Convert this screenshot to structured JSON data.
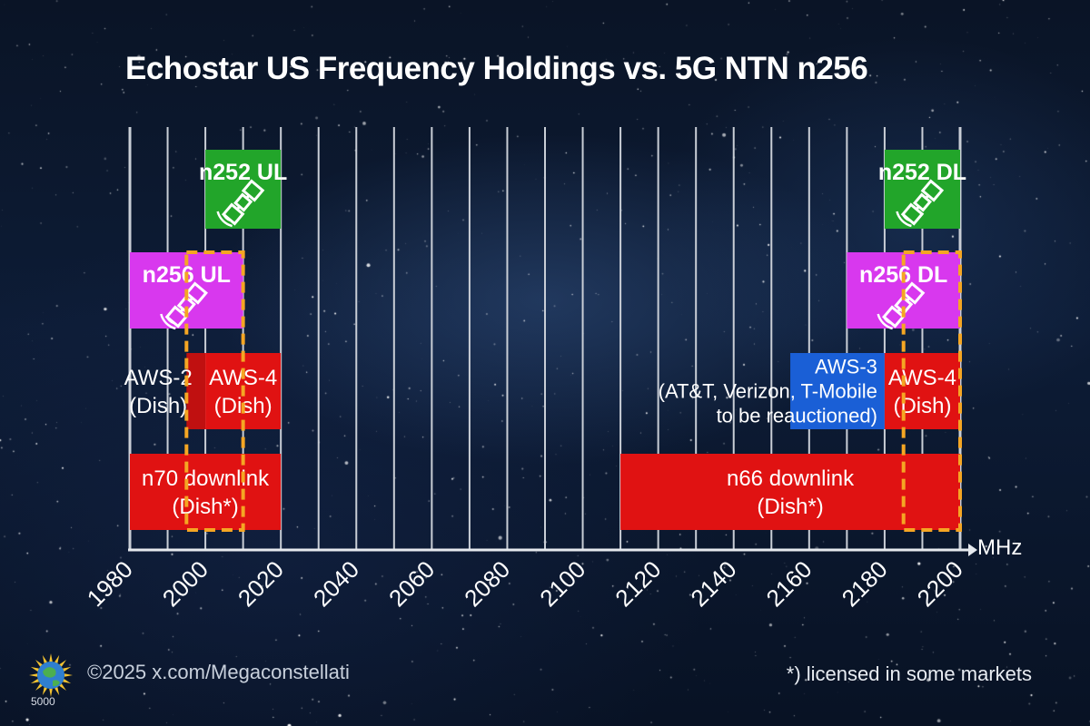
{
  "chart_data": {
    "type": "bar",
    "title": "Echostar US Frequency Holdings vs. 5G NTN n256",
    "xlabel": "MHz",
    "xlim": [
      1980,
      2200
    ],
    "grid_step": 10,
    "ticks": [
      "1980",
      "2000",
      "2020",
      "2040",
      "2060",
      "2080",
      "2100",
      "2120",
      "2140",
      "2160",
      "2180",
      "2200"
    ],
    "tick_values": [
      1980,
      2000,
      2020,
      2040,
      2060,
      2080,
      2100,
      2120,
      2140,
      2160,
      2180,
      2200
    ],
    "rows": [
      "n252",
      "n256",
      "aws",
      "n66-n70"
    ],
    "blocks": [
      {
        "id": "n252-ul",
        "row": 0,
        "start": 2000,
        "end": 2020,
        "lines": [
          "n252 UL"
        ],
        "color": "#22a52a",
        "satellite": true,
        "label_align": "top"
      },
      {
        "id": "n252-dl",
        "row": 0,
        "start": 2180,
        "end": 2200,
        "lines": [
          "n252 DL"
        ],
        "color": "#22a52a",
        "satellite": true,
        "label_align": "top"
      },
      {
        "id": "n256-ul",
        "row": 1,
        "start": 1980,
        "end": 2010,
        "lines": [
          "n256 UL"
        ],
        "color": "#d838ee",
        "satellite": true,
        "label_align": "top"
      },
      {
        "id": "n256-dl",
        "row": 1,
        "start": 2170,
        "end": 2200,
        "lines": [
          "n256 DL"
        ],
        "color": "#d838ee",
        "satellite": true,
        "label_align": "top"
      },
      {
        "id": "aws-2",
        "row": 2,
        "start": 1995,
        "end": 2000,
        "lines": [
          "AWS-2",
          "(Dish)"
        ],
        "color": "#c01010",
        "label_start": 1980,
        "label_end": 1995
      },
      {
        "id": "aws-4-low",
        "row": 2,
        "start": 2000,
        "end": 2020,
        "lines": [
          "AWS-4",
          "(Dish)"
        ],
        "color": "#e01212"
      },
      {
        "id": "aws-3",
        "row": 2,
        "start": 2155,
        "end": 2180,
        "lines": [
          "AWS-3",
          "(AT&T, Verizon, T-Mobile",
          "to be reauctioned)"
        ],
        "color": "#1a5fd6",
        "label_align": "right"
      },
      {
        "id": "aws-4-high",
        "row": 2,
        "start": 2180,
        "end": 2200,
        "lines": [
          "AWS-4",
          "(Dish)"
        ],
        "color": "#e01212"
      },
      {
        "id": "n70-dl",
        "row": 3,
        "start": 1980,
        "end": 2020,
        "lines": [
          "n70 downlink",
          "(Dish*)"
        ],
        "color": "#e01212"
      },
      {
        "id": "n66-dl",
        "row": 3,
        "start": 2110,
        "end": 2200,
        "lines": [
          "n66 downlink",
          "(Dish*)"
        ],
        "color": "#e01212"
      }
    ],
    "dashed_ranges": [
      {
        "id": "n256-ul-overlay",
        "start": 1995,
        "end": 2010,
        "color": "#f5a623"
      },
      {
        "id": "n256-dl-overlay",
        "start": 2185,
        "end": 2200,
        "color": "#f5a623"
      }
    ]
  },
  "footer": {
    "copyright": "©2025 x.com/Megaconstellati",
    "footnote": "*) licensed in some markets",
    "logo_number": "5000"
  }
}
